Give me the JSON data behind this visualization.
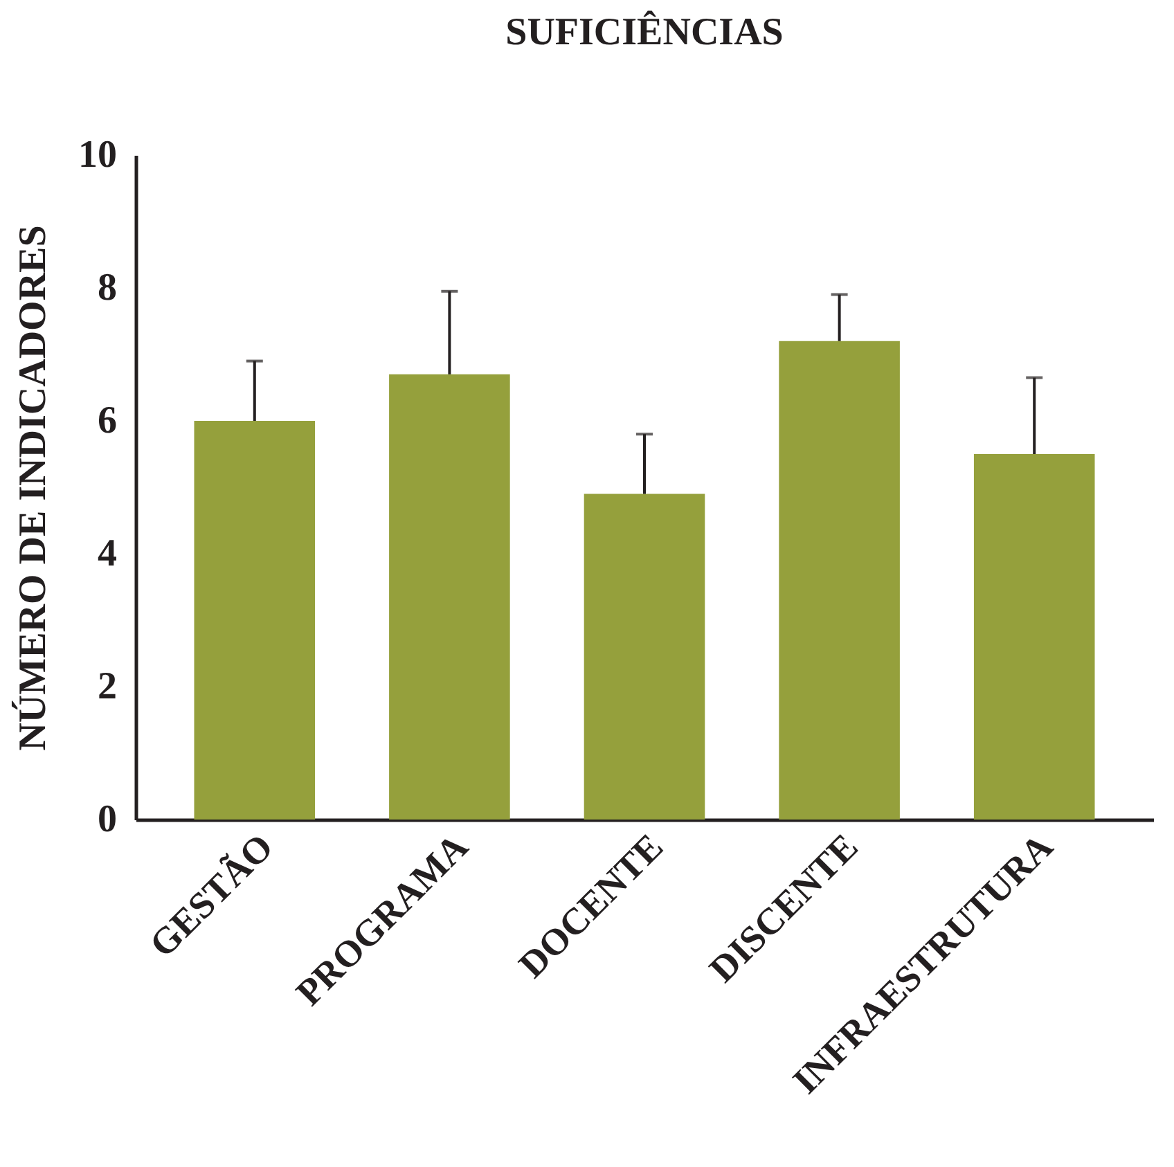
{
  "chart_data": {
    "type": "bar",
    "title": "SUFICIÊNCIAS",
    "ylabel": "NÚMERO DE INDICADORES",
    "categories": [
      "GESTÃO",
      "PROGRAMA",
      "DOCENTE",
      "DISCENTE",
      "INFRAESTRUTURA"
    ],
    "values": [
      6.0,
      6.7,
      4.9,
      7.2,
      5.5
    ],
    "errors": [
      [
        6.0,
        6.9
      ],
      [
        6.7,
        7.95
      ],
      [
        4.9,
        5.8
      ],
      [
        7.2,
        7.9
      ],
      [
        5.5,
        6.65
      ]
    ],
    "color": "#95a03c",
    "ylim": [
      0,
      10
    ],
    "yticks": [
      0,
      2,
      4,
      6,
      8,
      10
    ],
    "grid": false
  }
}
